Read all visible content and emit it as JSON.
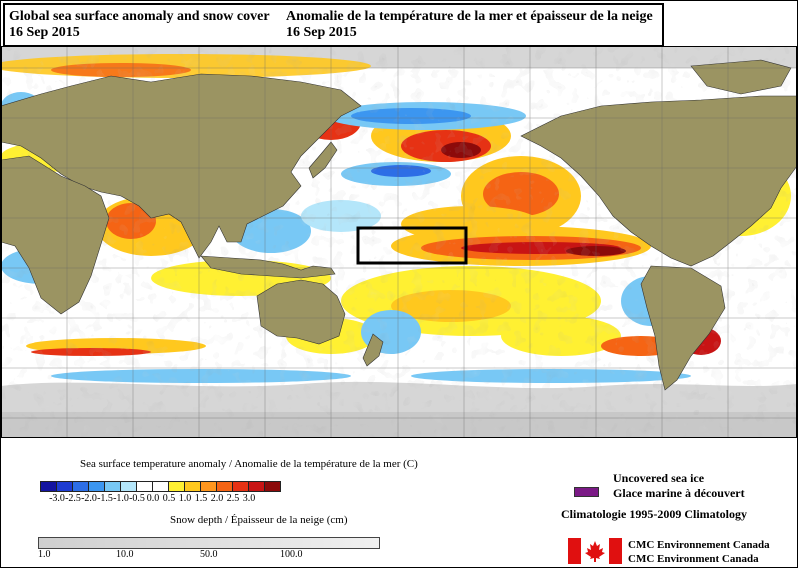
{
  "title": {
    "en_line1": "Global sea surface anomaly and snow cover",
    "en_line2": "16 Sep 2015",
    "fr_line1": "Anomalie de la température de la mer et épaisseur de la neige",
    "fr_line2": "16 Sep 2015"
  },
  "legend": {
    "sst_title": "Sea surface temperature anomaly / Anomalie de la température de la mer (C)",
    "sst_ticks": [
      "-3.0",
      "-2.5",
      "-2.0",
      "-1.5",
      "-1.0",
      "-0.5",
      "0.0",
      "0.5",
      "1.0",
      "1.5",
      "2.0",
      "2.5",
      "3.0"
    ],
    "sst_colors": [
      "#1414a0",
      "#1e3cd2",
      "#2d6ee6",
      "#3c96f0",
      "#78c8f5",
      "#b4e6fa",
      "#ffffff",
      "#ffffff",
      "#fff032",
      "#ffc81e",
      "#ff961e",
      "#f56414",
      "#e63214",
      "#c81414",
      "#8c0a0a"
    ],
    "snow_title": "Snow depth / Épaisseur de la neige (cm)",
    "snow_ticks": [
      "1.0",
      "10.0",
      "50.0",
      "100.0"
    ]
  },
  "ice": {
    "label_en": "Uncovered sea ice",
    "label_fr": "Glace marine à découvert",
    "swatch_color": "#7b1a86",
    "climatology": "Climatologie 1995-2009 Climatology"
  },
  "credits": {
    "line1": "CMC  Environnement  Canada",
    "line2": "CMC  Environment  Canada"
  },
  "map": {
    "land_color": "#9b9462",
    "ocean_color": "#ffffff",
    "snow_color": "#d9d9d9",
    "highlight_box": "Niño 3.4 region outline"
  }
}
